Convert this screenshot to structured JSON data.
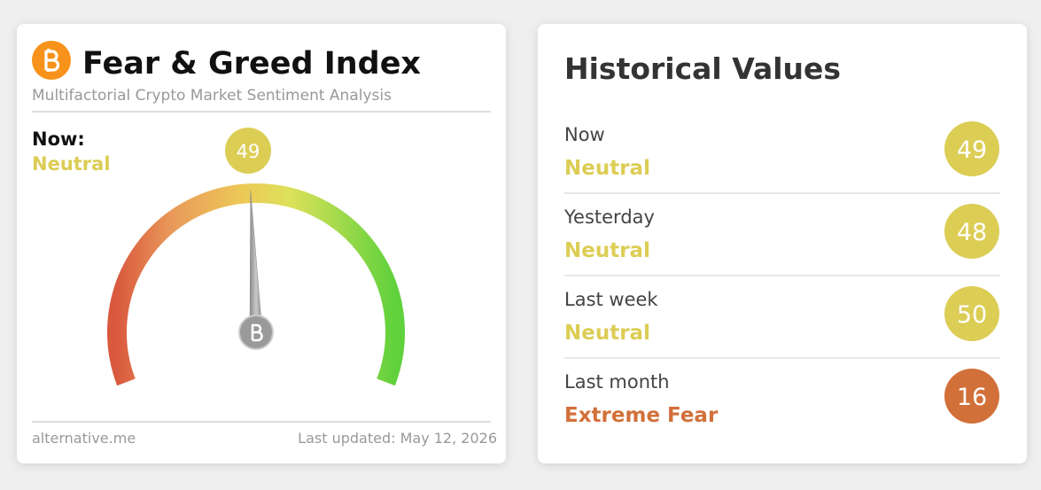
{
  "widget": {
    "title": "Fear & Greed Index",
    "subtitle": "Multifactorial Crypto Market Sentiment Analysis",
    "now": {
      "label": "Now:",
      "classification": "Neutral",
      "value": 49,
      "color": "#dccd55"
    },
    "scale": [
      0,
      100
    ],
    "source": "alternative.me",
    "updated": "Last updated: May 12, 2026"
  },
  "history": {
    "title": "Historical Values",
    "rows": [
      {
        "label": "Now",
        "classification": "Neutral",
        "value": 49,
        "color": "#dccd55"
      },
      {
        "label": "Yesterday",
        "classification": "Neutral",
        "value": 48,
        "color": "#dccd55"
      },
      {
        "label": "Last week",
        "classification": "Neutral",
        "value": 50,
        "color": "#dccd55"
      },
      {
        "label": "Last month",
        "classification": "Extreme Fear",
        "value": 16,
        "color": "#d2703a"
      }
    ]
  }
}
